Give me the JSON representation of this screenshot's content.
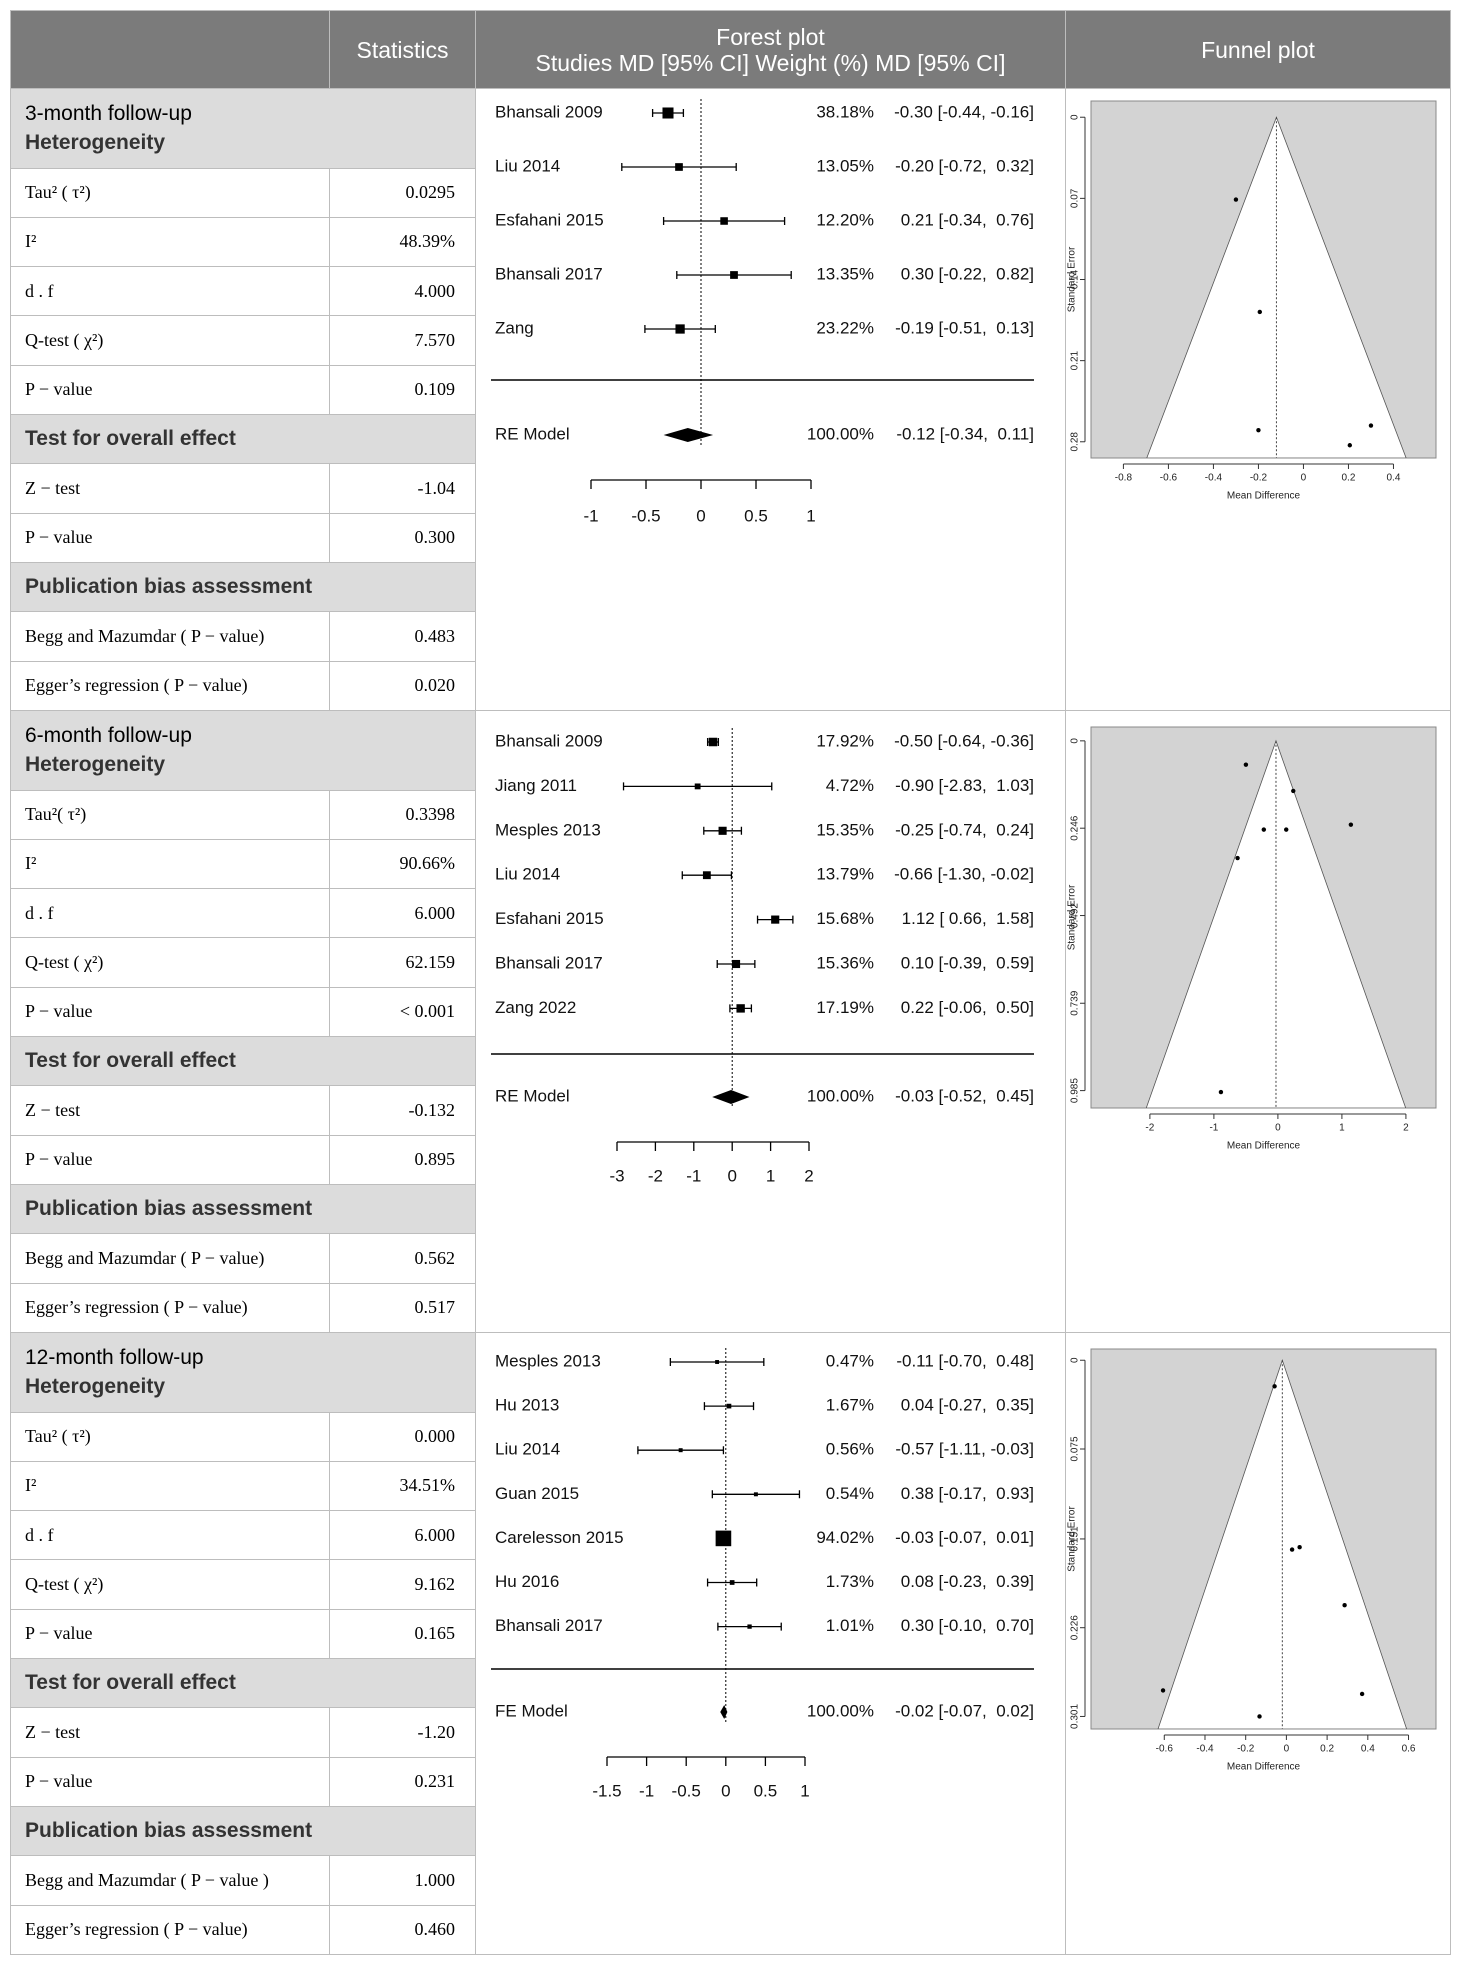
{
  "header": {
    "statistics": "Statistics",
    "forest_title": "Forest plot",
    "forest_subtitle": "Studies MD [95% CI] Weight (%) MD [95% CI]",
    "funnel_title": "Funnel plot"
  },
  "sections": [
    {
      "title": "3-month follow-up",
      "subtitle": "Heterogeneity",
      "rows": [
        {
          "label": "Tau² ( τ²)",
          "value": "0.0295"
        },
        {
          "label": "I²",
          "value": "48.39%"
        },
        {
          "label": "d . f",
          "value": "4.000"
        },
        {
          "label": "Q-test ( χ²)",
          "value": "7.570"
        },
        {
          "label": "P − value",
          "value": "0.109"
        },
        {
          "heading": "Test for overall effect"
        },
        {
          "label": "Z − test",
          "value": "-1.04"
        },
        {
          "label": "P − value",
          "value": "0.300"
        },
        {
          "heading": "Publication bias assessment"
        },
        {
          "label": "Begg and Mazumdar ( P − value)",
          "value": "0.483"
        },
        {
          "label": "Egger’s regression ( P − value)",
          "value": "0.020"
        }
      ],
      "forest": {
        "xlim": [
          -1,
          1
        ],
        "xticks": [
          -1,
          -0.5,
          0,
          0.5,
          1
        ],
        "studies": [
          {
            "name": "Bhansali 2009",
            "weight": 38.18,
            "weight_label": "38.18%",
            "estimate": "-0.30 [-0.44, -0.16]",
            "md": -0.3,
            "lo": -0.44,
            "hi": -0.16
          },
          {
            "name": "Liu 2014",
            "weight": 13.05,
            "weight_label": "13.05%",
            "estimate": "-0.20 [-0.72,  0.32]",
            "md": -0.2,
            "lo": -0.72,
            "hi": 0.32
          },
          {
            "name": "Esfahani 2015",
            "weight": 12.2,
            "weight_label": "12.20%",
            "estimate": "0.21 [-0.34,  0.76]",
            "md": 0.21,
            "lo": -0.34,
            "hi": 0.76
          },
          {
            "name": "Bhansali 2017",
            "weight": 13.35,
            "weight_label": "13.35%",
            "estimate": "0.30 [-0.22,  0.82]",
            "md": 0.3,
            "lo": -0.22,
            "hi": 0.82
          },
          {
            "name": "Zang",
            "weight": 23.22,
            "weight_label": "23.22%",
            "estimate": "-0.19 [-0.51,  0.13]",
            "md": -0.19,
            "lo": -0.51,
            "hi": 0.13
          }
        ],
        "pooled": {
          "name": "RE Model",
          "weight": 100.0,
          "weight_label": "100.00%",
          "estimate": "-0.12 [-0.34,  0.11]",
          "md": -0.12,
          "lo": -0.34,
          "hi": 0.11
        }
      },
      "funnel": {
        "xlabel": "Mean Difference",
        "ylabel": "Standard Error",
        "xlim": [
          -0.944,
          0.589
        ],
        "ylim": [
          0.294,
          -0.014
        ],
        "xticks": [
          -0.8,
          -0.6,
          -0.4,
          -0.2,
          0,
          0.2,
          0.4
        ],
        "yticks": [
          0,
          0.07,
          0.14,
          0.21,
          0.28
        ],
        "x": [
          -0.3,
          -0.194,
          -0.2,
          0.206,
          0.3
        ],
        "y": [
          0.071,
          0.168,
          0.27,
          0.283,
          0.266
        ]
      }
    },
    {
      "title": "6-month follow-up",
      "subtitle": "Heterogeneity",
      "rows": [
        {
          "label": "Tau²( τ²)",
          "value": "0.3398"
        },
        {
          "label": "I²",
          "value": "90.66%"
        },
        {
          "label": "d . f",
          "value": "6.000"
        },
        {
          "label": "Q-test ( χ²)",
          "value": "62.159"
        },
        {
          "label": "P − value",
          "value": "< 0.001"
        },
        {
          "heading": "Test for overall effect"
        },
        {
          "label": "Z − test",
          "value": "-0.132"
        },
        {
          "label": "P − value",
          "value": "0.895"
        },
        {
          "heading": "Publication bias assessment"
        },
        {
          "label": "Begg and Mazumdar ( P − value)",
          "value": "0.562"
        },
        {
          "label": "Egger’s regression ( P − value)",
          "value": "0.517"
        }
      ],
      "forest": {
        "xlim": [
          -3,
          2
        ],
        "xticks": [
          -3,
          -2,
          -1,
          0,
          1,
          2
        ],
        "studies": [
          {
            "name": "Bhansali 2009",
            "weight": 17.92,
            "weight_label": "17.92%",
            "estimate": "-0.50 [-0.64, -0.36]",
            "md": -0.5,
            "lo": -0.64,
            "hi": -0.36
          },
          {
            "name": "Jiang 2011",
            "weight": 4.72,
            "weight_label": "4.72%",
            "estimate": "-0.90 [-2.83,  1.03]",
            "md": -0.9,
            "lo": -2.83,
            "hi": 1.03
          },
          {
            "name": "Mesples 2013",
            "weight": 15.35,
            "weight_label": "15.35%",
            "estimate": "-0.25 [-0.74,  0.24]",
            "md": -0.25,
            "lo": -0.74,
            "hi": 0.24
          },
          {
            "name": "Liu 2014",
            "weight": 13.79,
            "weight_label": "13.79%",
            "estimate": "-0.66 [-1.30, -0.02]",
            "md": -0.66,
            "lo": -1.3,
            "hi": -0.02
          },
          {
            "name": "Esfahani 2015",
            "weight": 15.68,
            "weight_label": "15.68%",
            "estimate": "1.12 [ 0.66,  1.58]",
            "md": 1.12,
            "lo": 0.66,
            "hi": 1.58
          },
          {
            "name": "Bhansali 2017",
            "weight": 15.36,
            "weight_label": "15.36%",
            "estimate": "0.10 [-0.39,  0.59]",
            "md": 0.1,
            "lo": -0.39,
            "hi": 0.59
          },
          {
            "name": "Zang 2022",
            "weight": 17.19,
            "weight_label": "17.19%",
            "estimate": "0.22 [-0.06,  0.50]",
            "md": 0.22,
            "lo": -0.06,
            "hi": 0.5
          }
        ],
        "pooled": {
          "name": "RE Model",
          "weight": 100.0,
          "weight_label": "100.00%",
          "estimate": "-0.03 [-0.52,  0.45]",
          "md": -0.03,
          "lo": -0.52,
          "hi": 0.45
        }
      },
      "funnel": {
        "xlabel": "Mean Difference",
        "ylabel": "Standard Error",
        "xlim": [
          -2.92,
          2.47
        ],
        "ylim": [
          1.034,
          -0.039
        ],
        "xticks": [
          -2,
          -1,
          0,
          1,
          2
        ],
        "yticks": [
          0,
          0.246,
          0.492,
          0.739,
          0.985
        ],
        "x": [
          -0.5,
          0.24,
          -0.22,
          0.13,
          1.14,
          -0.63,
          -0.89
        ],
        "y": [
          0.067,
          0.141,
          0.25,
          0.25,
          0.236,
          0.33,
          0.989
        ]
      }
    },
    {
      "title": "12-month follow-up",
      "subtitle": "Heterogeneity",
      "rows": [
        {
          "label": "Tau² ( τ²)",
          "value": "0.000"
        },
        {
          "label": "I²",
          "value": "34.51%"
        },
        {
          "label": "d . f",
          "value": "6.000"
        },
        {
          "label": "Q-test ( χ²)",
          "value": "9.162"
        },
        {
          "label": "P − value",
          "value": "0.165"
        },
        {
          "heading": "Test for overall effect"
        },
        {
          "label": "Z − test",
          "value": "-1.20"
        },
        {
          "label": "P − value",
          "value": "0.231"
        },
        {
          "heading": "Publication bias assessment"
        },
        {
          "label": "Begg and Mazumdar ( P − value )",
          "value": "1.000"
        },
        {
          "label": "Egger’s regression ( P − value)",
          "value": "0.460"
        }
      ],
      "forest": {
        "xlim": [
          -1.5,
          1
        ],
        "xticks": [
          -1.5,
          -1,
          -0.5,
          0,
          0.5,
          1
        ],
        "studies": [
          {
            "name": "Mesples 2013",
            "weight": 0.47,
            "weight_label": "0.47%",
            "estimate": "-0.11 [-0.70,  0.48]",
            "md": -0.11,
            "lo": -0.7,
            "hi": 0.48
          },
          {
            "name": "Hu 2013",
            "weight": 1.67,
            "weight_label": "1.67%",
            "estimate": "0.04 [-0.27,  0.35]",
            "md": 0.04,
            "lo": -0.27,
            "hi": 0.35
          },
          {
            "name": "Liu 2014",
            "weight": 0.56,
            "weight_label": "0.56%",
            "estimate": "-0.57 [-1.11, -0.03]",
            "md": -0.57,
            "lo": -1.11,
            "hi": -0.03
          },
          {
            "name": "Guan 2015",
            "weight": 0.54,
            "weight_label": "0.54%",
            "estimate": "0.38 [-0.17,  0.93]",
            "md": 0.38,
            "lo": -0.17,
            "hi": 0.93
          },
          {
            "name": "Carelesson 2015",
            "weight": 94.02,
            "weight_label": "94.02%",
            "estimate": "-0.03 [-0.07,  0.01]",
            "md": -0.03,
            "lo": -0.07,
            "hi": 0.01
          },
          {
            "name": "Hu 2016",
            "weight": 1.73,
            "weight_label": "1.73%",
            "estimate": "0.08 [-0.23,  0.39]",
            "md": 0.08,
            "lo": -0.23,
            "hi": 0.39
          },
          {
            "name": "Bhansali 2017",
            "weight": 1.01,
            "weight_label": "1.01%",
            "estimate": "0.30 [-0.10,  0.70]",
            "md": 0.3,
            "lo": -0.1,
            "hi": 0.7
          }
        ],
        "pooled": {
          "name": "FE Model",
          "weight": 100.0,
          "weight_label": "100.00%",
          "estimate": "-0.02 [-0.07,  0.02]",
          "md": -0.02,
          "lo": -0.07,
          "hi": 0.02
        }
      },
      "funnel": {
        "xlabel": "Mean Difference",
        "ylabel": "Standard Error",
        "xlim": [
          -0.96,
          0.735
        ],
        "ylim": [
          0.3116,
          -0.0095
        ],
        "xticks": [
          -0.6,
          -0.4,
          -0.2,
          0,
          0.2,
          0.4,
          0.6
        ],
        "yticks": [
          0,
          0.075,
          0.151,
          0.226,
          0.301
        ],
        "x": [
          -0.058,
          0.028,
          0.065,
          0.286,
          0.372,
          -0.606,
          -0.132
        ],
        "y": [
          0.022,
          0.16,
          0.158,
          0.207,
          0.282,
          0.279,
          0.301
        ]
      }
    }
  ]
}
